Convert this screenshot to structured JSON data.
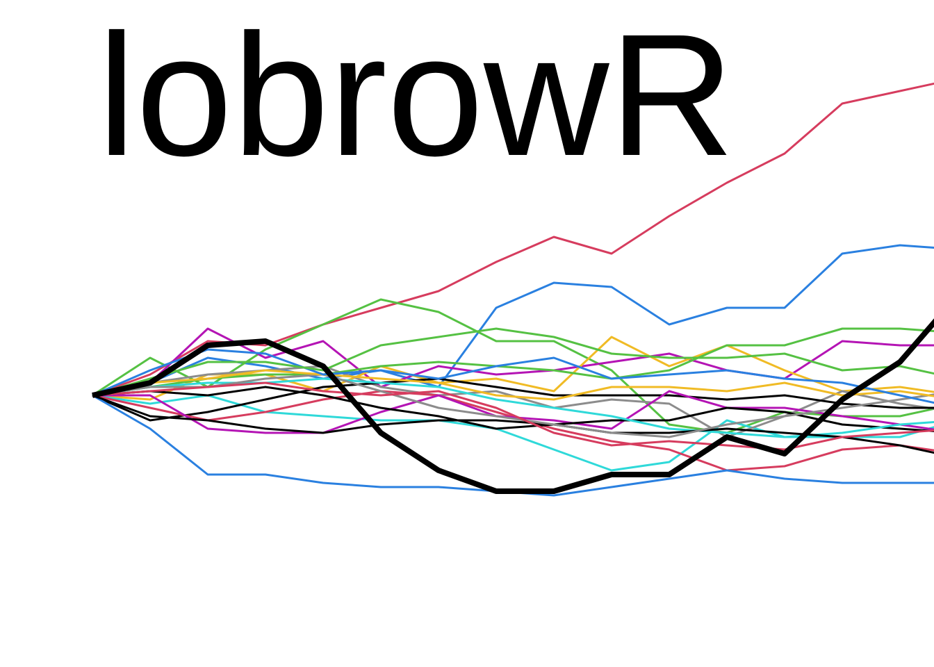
{
  "logo": {
    "wordmark": "lobrowR"
  },
  "walks": {
    "start_value": 0,
    "steps": 15,
    "bold_color": "#000000",
    "series": [
      {
        "color": "#d63c5e",
        "values": [
          0,
          0.5,
          1.3,
          1.2,
          1.7,
          2.1,
          2.5,
          3.2,
          3.8,
          3.4,
          4.3,
          5.1,
          5.8,
          7.0,
          7.3,
          7.6
        ]
      },
      {
        "color": "#2a80e0",
        "values": [
          0,
          0.3,
          0.9,
          0.7,
          0.4,
          0.6,
          0.2,
          2.1,
          2.7,
          2.6,
          1.7,
          2.1,
          2.1,
          3.4,
          3.6,
          3.5
        ]
      },
      {
        "color": "#55c143",
        "values": [
          0,
          0.9,
          0.2,
          1.1,
          1.7,
          2.3,
          2.0,
          1.3,
          1.3,
          0.6,
          -0.7,
          -0.9,
          -0.4,
          -0.5,
          -0.5,
          -0.2
        ]
      },
      {
        "color": "#b414b4",
        "values": [
          0,
          0.3,
          1.6,
          0.9,
          1.3,
          0.2,
          0.7,
          0.5,
          0.6,
          0.8,
          1.0,
          0.6,
          0.4,
          1.3,
          1.2,
          1.2
        ]
      },
      {
        "color": "#f0bb25",
        "values": [
          0,
          -0.1,
          0.5,
          0.5,
          0.1,
          0.7,
          0.3,
          0.4,
          0.1,
          1.4,
          0.7,
          1.2,
          0.6,
          0.1,
          0.2,
          0.0
        ]
      },
      {
        "color": "#2fd9d9",
        "values": [
          0,
          -0.2,
          0.0,
          -0.4,
          -0.5,
          -0.6,
          -0.6,
          -0.8,
          -1.3,
          -1.8,
          -1.6,
          -0.6,
          -1.0,
          -1.0,
          -1.0,
          -0.6
        ]
      },
      {
        "color": "#8c8c8c",
        "values": [
          0,
          0.3,
          0.5,
          0.6,
          0.7,
          0.2,
          0.0,
          0.1,
          -0.3,
          -0.1,
          -0.2,
          -1.0,
          -0.5,
          0.1,
          -0.2,
          -0.4
        ]
      },
      {
        "color": "#000000",
        "values": [
          0,
          -0.6,
          -0.4,
          -0.1,
          0.2,
          0.3,
          0.4,
          0.2,
          0.0,
          0.0,
          0.0,
          -0.1,
          0.0,
          -0.2,
          -0.3,
          -0.3
        ]
      },
      {
        "color": "#d63c5e",
        "values": [
          0,
          -0.3,
          -0.6,
          -0.4,
          -0.1,
          0.1,
          0.0,
          -0.4,
          -0.8,
          -1.1,
          -1.3,
          -1.8,
          -1.7,
          -1.3,
          -1.2,
          -1.4
        ]
      },
      {
        "color": "#2a80e0",
        "values": [
          0,
          -0.8,
          -1.9,
          -1.9,
          -2.1,
          -2.2,
          -2.2,
          -2.3,
          -2.4,
          -2.2,
          -2.0,
          -1.8,
          -2.0,
          -2.1,
          -2.1,
          -2.1
        ]
      },
      {
        "color": "#55c143",
        "values": [
          0,
          0.2,
          0.4,
          0.5,
          0.5,
          0.7,
          0.8,
          0.7,
          0.6,
          0.4,
          0.6,
          1.2,
          1.2,
          1.6,
          1.6,
          1.5
        ]
      },
      {
        "color": "#b414b4",
        "values": [
          0,
          0.0,
          -0.8,
          -0.9,
          -0.9,
          -0.4,
          0.0,
          -0.5,
          -0.6,
          -0.8,
          0.1,
          -0.3,
          -0.3,
          -0.5,
          -0.7,
          -0.9
        ]
      },
      {
        "color": "#000000",
        "values": [
          0,
          0.1,
          0.0,
          0.2,
          0.0,
          -0.3,
          -0.5,
          -0.8,
          -0.7,
          -0.6,
          -0.6,
          -0.3,
          -0.4,
          -0.7,
          -0.8,
          -0.9
        ]
      },
      {
        "color": "#2fd9d9",
        "values": [
          0,
          0.2,
          0.3,
          0.3,
          0.4,
          0.3,
          0.2,
          -0.1,
          -0.3,
          -0.5,
          -0.8,
          -0.9,
          -1.0,
          -0.9,
          -0.7,
          -0.6
        ]
      },
      {
        "color": "#000000",
        "values": [
          0,
          -0.5,
          -0.6,
          -0.8,
          -0.9,
          -0.7,
          -0.6,
          -0.6,
          -0.7,
          -0.9,
          -0.9,
          -0.8,
          -0.9,
          -1.0,
          -1.2,
          -1.5
        ]
      },
      {
        "color": "#8c8c8c",
        "values": [
          0,
          0.2,
          0.2,
          0.4,
          0.5,
          0.1,
          -0.3,
          -0.5,
          -0.7,
          -0.9,
          -1.0,
          -0.7,
          -0.5,
          -0.3,
          -0.1,
          0.1
        ]
      },
      {
        "color": "#d63c5e",
        "values": [
          0,
          0.1,
          0.2,
          0.3,
          0.1,
          0.0,
          0.1,
          -0.3,
          -0.9,
          -1.2,
          -1.1,
          -1.2,
          -1.3,
          -1.0,
          -0.9,
          -0.8
        ]
      },
      {
        "color": "#f0bb25",
        "values": [
          0,
          0.3,
          0.4,
          0.6,
          0.5,
          0.4,
          0.3,
          0.0,
          -0.1,
          0.2,
          0.2,
          0.1,
          0.3,
          0.0,
          0.1,
          -0.1
        ]
      },
      {
        "color": "#2a80e0",
        "values": [
          0,
          0.6,
          1.1,
          1.0,
          0.5,
          0.6,
          0.4,
          0.7,
          0.9,
          0.4,
          0.5,
          0.6,
          0.4,
          0.3,
          0.0,
          -0.3
        ]
      },
      {
        "color": "#55c143",
        "values": [
          0,
          0.4,
          0.8,
          0.8,
          0.6,
          1.2,
          1.4,
          1.6,
          1.4,
          1.0,
          0.9,
          0.9,
          1.0,
          0.6,
          0.7,
          0.4
        ]
      }
    ],
    "bold": {
      "values": [
        0,
        0.3,
        1.2,
        1.3,
        0.7,
        -0.9,
        -1.8,
        -2.3,
        -2.3,
        -1.9,
        -1.9,
        -1.0,
        -1.4,
        -0.1,
        0.8,
        2.4
      ]
    },
    "value_range": [
      -3.5,
      9
    ]
  }
}
